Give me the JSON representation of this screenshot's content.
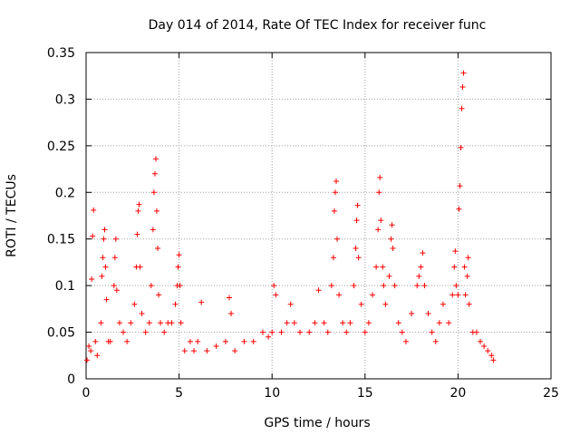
{
  "chart_data": {
    "type": "scatter",
    "title": "Day 014 of 2014, Rate Of TEC Index for receiver func",
    "xlabel": "GPS time / hours",
    "ylabel": "ROTI / TECUs",
    "xlim": [
      0,
      25
    ],
    "ylim": [
      0,
      0.35
    ],
    "x_ticks": [
      0,
      5,
      10,
      15,
      20,
      25
    ],
    "x_tick_labels": [
      "0",
      "5",
      "10",
      "15",
      "20",
      "25"
    ],
    "y_ticks": [
      0,
      0.05,
      0.1,
      0.15,
      0.2,
      0.25,
      0.3,
      0.35
    ],
    "y_tick_labels": [
      "0",
      "0.05",
      "0.1",
      "0.15",
      "0.2",
      "0.25",
      "0.3",
      "0.35"
    ],
    "grid": true,
    "marker": "+",
    "marker_color": "#ff0000",
    "series": [
      {
        "name": "ROTI",
        "points": [
          [
            0.05,
            0.02
          ],
          [
            0.15,
            0.035
          ],
          [
            0.25,
            0.03
          ],
          [
            0.3,
            0.107
          ],
          [
            0.35,
            0.153
          ],
          [
            0.4,
            0.181
          ],
          [
            0.5,
            0.04
          ],
          [
            0.6,
            0.025
          ],
          [
            0.8,
            0.06
          ],
          [
            0.85,
            0.11
          ],
          [
            0.9,
            0.13
          ],
          [
            0.95,
            0.15
          ],
          [
            1.0,
            0.16
          ],
          [
            1.05,
            0.12
          ],
          [
            1.1,
            0.085
          ],
          [
            1.2,
            0.04
          ],
          [
            1.3,
            0.04
          ],
          [
            1.5,
            0.1
          ],
          [
            1.55,
            0.13
          ],
          [
            1.6,
            0.15
          ],
          [
            1.65,
            0.095
          ],
          [
            1.8,
            0.06
          ],
          [
            2.0,
            0.05
          ],
          [
            2.2,
            0.04
          ],
          [
            2.4,
            0.06
          ],
          [
            2.6,
            0.08
          ],
          [
            2.7,
            0.12
          ],
          [
            2.75,
            0.155
          ],
          [
            2.8,
            0.18
          ],
          [
            2.85,
            0.187
          ],
          [
            2.9,
            0.12
          ],
          [
            3.0,
            0.07
          ],
          [
            3.2,
            0.05
          ],
          [
            3.4,
            0.06
          ],
          [
            3.5,
            0.1
          ],
          [
            3.6,
            0.16
          ],
          [
            3.65,
            0.2
          ],
          [
            3.7,
            0.22
          ],
          [
            3.75,
            0.236
          ],
          [
            3.8,
            0.18
          ],
          [
            3.85,
            0.14
          ],
          [
            3.9,
            0.09
          ],
          [
            4.0,
            0.06
          ],
          [
            4.2,
            0.05
          ],
          [
            4.4,
            0.06
          ],
          [
            4.6,
            0.06
          ],
          [
            4.8,
            0.08
          ],
          [
            4.9,
            0.1
          ],
          [
            4.95,
            0.12
          ],
          [
            5.0,
            0.133
          ],
          [
            5.05,
            0.1
          ],
          [
            5.1,
            0.06
          ],
          [
            5.3,
            0.03
          ],
          [
            5.6,
            0.04
          ],
          [
            5.8,
            0.03
          ],
          [
            6.0,
            0.04
          ],
          [
            6.2,
            0.082
          ],
          [
            6.5,
            0.03
          ],
          [
            7.0,
            0.035
          ],
          [
            7.5,
            0.04
          ],
          [
            7.7,
            0.087
          ],
          [
            7.8,
            0.07
          ],
          [
            8.0,
            0.03
          ],
          [
            8.5,
            0.04
          ],
          [
            9.0,
            0.04
          ],
          [
            9.5,
            0.05
          ],
          [
            9.8,
            0.045
          ],
          [
            10.0,
            0.05
          ],
          [
            10.1,
            0.1
          ],
          [
            10.2,
            0.09
          ],
          [
            10.5,
            0.05
          ],
          [
            10.8,
            0.06
          ],
          [
            11.0,
            0.08
          ],
          [
            11.2,
            0.06
          ],
          [
            11.5,
            0.05
          ],
          [
            12.0,
            0.05
          ],
          [
            12.3,
            0.06
          ],
          [
            12.5,
            0.095
          ],
          [
            12.8,
            0.06
          ],
          [
            13.0,
            0.05
          ],
          [
            13.2,
            0.1
          ],
          [
            13.3,
            0.13
          ],
          [
            13.35,
            0.18
          ],
          [
            13.4,
            0.2
          ],
          [
            13.45,
            0.212
          ],
          [
            13.5,
            0.15
          ],
          [
            13.6,
            0.09
          ],
          [
            13.8,
            0.06
          ],
          [
            14.0,
            0.05
          ],
          [
            14.2,
            0.06
          ],
          [
            14.4,
            0.1
          ],
          [
            14.5,
            0.14
          ],
          [
            14.55,
            0.17
          ],
          [
            14.6,
            0.186
          ],
          [
            14.65,
            0.13
          ],
          [
            14.8,
            0.08
          ],
          [
            15.0,
            0.05
          ],
          [
            15.2,
            0.06
          ],
          [
            15.4,
            0.09
          ],
          [
            15.6,
            0.12
          ],
          [
            15.7,
            0.16
          ],
          [
            15.75,
            0.2
          ],
          [
            15.8,
            0.216
          ],
          [
            15.85,
            0.17
          ],
          [
            15.95,
            0.12
          ],
          [
            16.0,
            0.1
          ],
          [
            16.1,
            0.08
          ],
          [
            16.3,
            0.11
          ],
          [
            16.4,
            0.15
          ],
          [
            16.45,
            0.165
          ],
          [
            16.5,
            0.14
          ],
          [
            16.6,
            0.1
          ],
          [
            16.8,
            0.06
          ],
          [
            17.0,
            0.05
          ],
          [
            17.2,
            0.04
          ],
          [
            17.5,
            0.07
          ],
          [
            17.8,
            0.1
          ],
          [
            17.9,
            0.11
          ],
          [
            18.0,
            0.12
          ],
          [
            18.1,
            0.135
          ],
          [
            18.2,
            0.1
          ],
          [
            18.4,
            0.07
          ],
          [
            18.6,
            0.05
          ],
          [
            18.8,
            0.04
          ],
          [
            19.0,
            0.06
          ],
          [
            19.2,
            0.08
          ],
          [
            19.5,
            0.06
          ],
          [
            19.7,
            0.09
          ],
          [
            19.8,
            0.12
          ],
          [
            19.85,
            0.137
          ],
          [
            19.9,
            0.1
          ],
          [
            20.0,
            0.09
          ],
          [
            20.05,
            0.182
          ],
          [
            20.1,
            0.207
          ],
          [
            20.15,
            0.248
          ],
          [
            20.2,
            0.29
          ],
          [
            20.25,
            0.313
          ],
          [
            20.3,
            0.328
          ],
          [
            20.35,
            0.12
          ],
          [
            20.4,
            0.09
          ],
          [
            20.5,
            0.11
          ],
          [
            20.55,
            0.13
          ],
          [
            20.6,
            0.08
          ],
          [
            20.8,
            0.05
          ],
          [
            21.0,
            0.05
          ],
          [
            21.2,
            0.04
          ],
          [
            21.4,
            0.035
          ],
          [
            21.6,
            0.03
          ],
          [
            21.8,
            0.025
          ],
          [
            21.9,
            0.02
          ]
        ]
      }
    ]
  }
}
